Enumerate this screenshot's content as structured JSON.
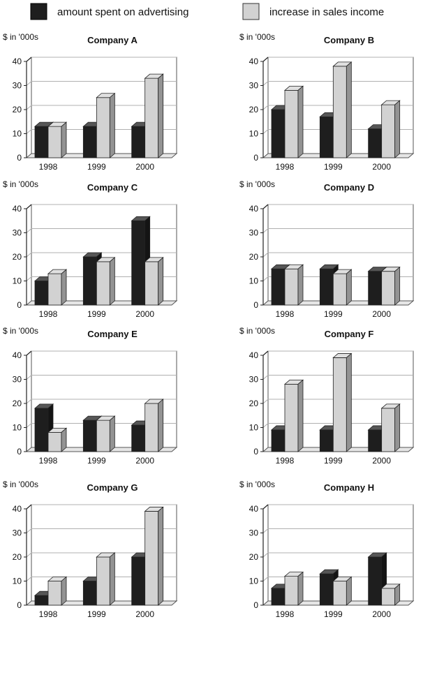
{
  "colors": {
    "advertising": "#1e1e1e",
    "sales": "#d2d2d2"
  },
  "legend": {
    "advertising_label": "amount spent on advertising",
    "sales_label": "increase in sales income"
  },
  "chart_data": [
    {
      "type": "bar",
      "title": "Company A",
      "ylabel": "$ in '000s",
      "categories": [
        "1998",
        "1999",
        "2000"
      ],
      "ylim": [
        0,
        40
      ],
      "yticks": [
        0,
        10,
        20,
        30,
        40
      ],
      "series": [
        {
          "name": "amount spent on advertising",
          "values": [
            13,
            13,
            13
          ]
        },
        {
          "name": "increase in sales income",
          "values": [
            13,
            25,
            33
          ]
        }
      ]
    },
    {
      "type": "bar",
      "title": "Company B",
      "ylabel": "$ in '000s",
      "categories": [
        "1998",
        "1999",
        "2000"
      ],
      "ylim": [
        0,
        40
      ],
      "yticks": [
        0,
        10,
        20,
        30,
        40
      ],
      "series": [
        {
          "name": "amount spent on advertising",
          "values": [
            20,
            17,
            12
          ]
        },
        {
          "name": "increase in sales income",
          "values": [
            28,
            38,
            22
          ]
        }
      ]
    },
    {
      "type": "bar",
      "title": "Company C",
      "ylabel": "$ in '000s",
      "categories": [
        "1998",
        "1999",
        "2000"
      ],
      "ylim": [
        0,
        40
      ],
      "yticks": [
        0,
        10,
        20,
        30,
        40
      ],
      "series": [
        {
          "name": "amount spent on advertising",
          "values": [
            10,
            20,
            35
          ]
        },
        {
          "name": "increase in sales income",
          "values": [
            13,
            18,
            18
          ]
        }
      ]
    },
    {
      "type": "bar",
      "title": "Company D",
      "ylabel": "$ in '000s",
      "categories": [
        "1998",
        "1999",
        "2000"
      ],
      "ylim": [
        0,
        40
      ],
      "yticks": [
        0,
        10,
        20,
        30,
        40
      ],
      "series": [
        {
          "name": "amount spent on advertising",
          "values": [
            15,
            15,
            14
          ]
        },
        {
          "name": "increase in sales income",
          "values": [
            15,
            13,
            14
          ]
        }
      ]
    },
    {
      "type": "bar",
      "title": "Company E",
      "ylabel": "$ in '000s",
      "categories": [
        "1998",
        "1999",
        "2000"
      ],
      "ylim": [
        0,
        40
      ],
      "yticks": [
        0,
        10,
        20,
        30,
        40
      ],
      "series": [
        {
          "name": "amount spent on advertising",
          "values": [
            18,
            13,
            11
          ]
        },
        {
          "name": "increase in sales income",
          "values": [
            8,
            13,
            20
          ]
        }
      ]
    },
    {
      "type": "bar",
      "title": "Company F",
      "ylabel": "$ in '000s",
      "categories": [
        "1998",
        "1999",
        "2000"
      ],
      "ylim": [
        0,
        40
      ],
      "yticks": [
        0,
        10,
        20,
        30,
        40
      ],
      "series": [
        {
          "name": "amount spent on advertising",
          "values": [
            9,
            9,
            9
          ]
        },
        {
          "name": "increase in sales income",
          "values": [
            28,
            39,
            18
          ]
        }
      ]
    },
    {
      "type": "bar",
      "title": "Company G",
      "ylabel": "$ in '000s",
      "categories": [
        "1998",
        "1999",
        "2000"
      ],
      "ylim": [
        0,
        40
      ],
      "yticks": [
        0,
        10,
        20,
        30,
        40
      ],
      "series": [
        {
          "name": "amount spent on advertising",
          "values": [
            4,
            10,
            20
          ]
        },
        {
          "name": "increase in sales income",
          "values": [
            10,
            20,
            39
          ]
        }
      ]
    },
    {
      "type": "bar",
      "title": "Company H",
      "ylabel": "$ in '000s",
      "categories": [
        "1998",
        "1999",
        "2000"
      ],
      "ylim": [
        0,
        40
      ],
      "yticks": [
        0,
        10,
        20,
        30,
        40
      ],
      "series": [
        {
          "name": "amount spent on advertising",
          "values": [
            7,
            13,
            20
          ]
        },
        {
          "name": "increase in sales income",
          "values": [
            12,
            10,
            7
          ]
        }
      ]
    }
  ]
}
